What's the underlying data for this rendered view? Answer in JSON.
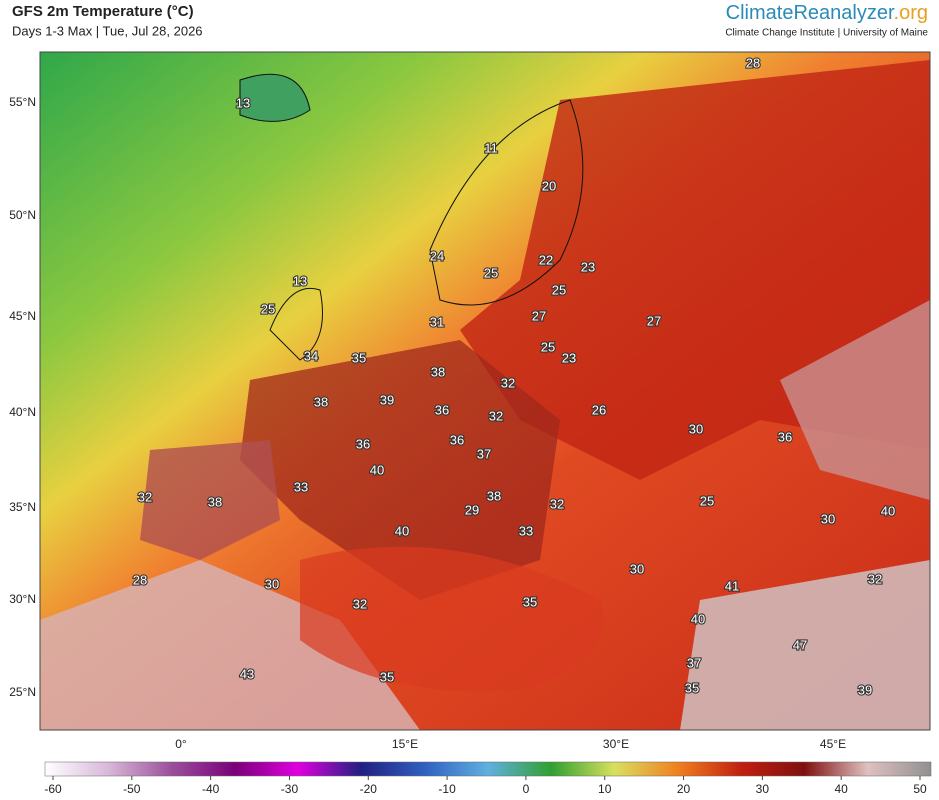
{
  "header": {
    "title": "GFS 2m Temperature (°C)",
    "subtitle": "Days 1-3 Max | Tue, Jul 28, 2026",
    "brand_main": "ClimateReanalyzer",
    "brand_suffix": ".org",
    "institute": "Climate Change Institute | University of Maine"
  },
  "map": {
    "lat_labels": [
      "55°N",
      "50°N",
      "45°N",
      "40°N",
      "35°N",
      "30°N",
      "25°N"
    ],
    "lon_labels": [
      "0°",
      "15°E",
      "30°E",
      "45°E"
    ],
    "temperature_labels": [
      28,
      13,
      11,
      20,
      24,
      25,
      22,
      23,
      25,
      13,
      25,
      27,
      31,
      27,
      25,
      23,
      34,
      35,
      38,
      32,
      38,
      39,
      36,
      32,
      26,
      30,
      36,
      36,
      36,
      37,
      40,
      33,
      38,
      25,
      32,
      38,
      29,
      32,
      30,
      40,
      40,
      33,
      30,
      28,
      30,
      41,
      32,
      32,
      35,
      40,
      47,
      37,
      43,
      35,
      35,
      39
    ]
  },
  "colorbar": {
    "ticks": [
      -60,
      -50,
      -40,
      -30,
      -20,
      -10,
      0,
      10,
      20,
      30,
      40,
      50
    ],
    "colors": [
      "#ffffff",
      "#d8b8d8",
      "#9b4f9b",
      "#7a007a",
      "#e000e0",
      "#202080",
      "#3060c0",
      "#60b0e0",
      "#30a030",
      "#d8e060",
      "#f08020",
      "#c02010",
      "#801010",
      "#e0c0c0",
      "#909090"
    ]
  }
}
